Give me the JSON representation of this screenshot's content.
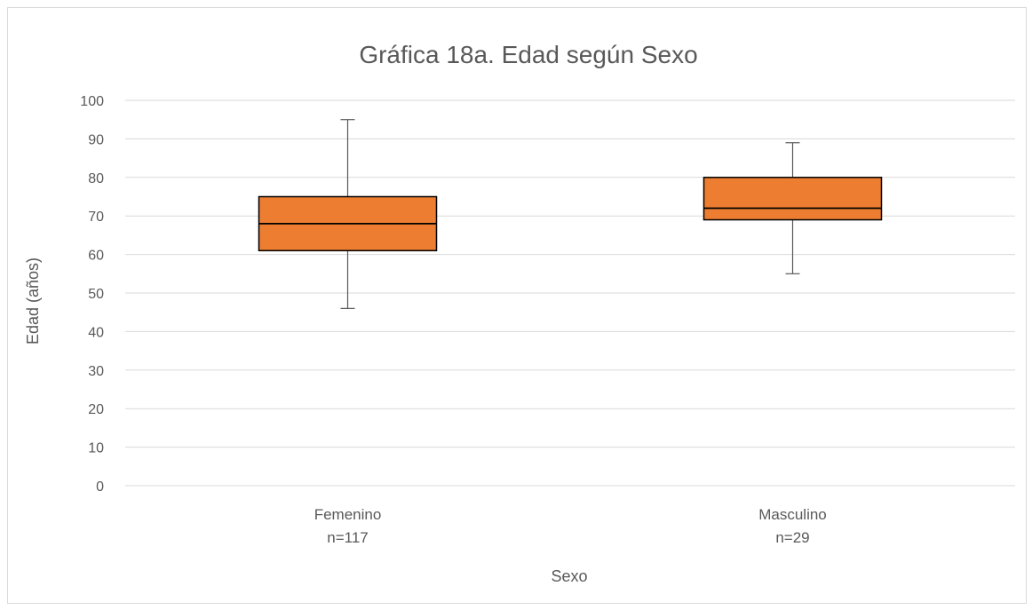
{
  "chart_data": {
    "type": "box",
    "title": "Gráfica 18a. Edad según Sexo",
    "xlabel": "Sexo",
    "ylabel": "Edad (años)",
    "ylim": [
      0,
      100
    ],
    "yticks": [
      0,
      10,
      20,
      30,
      40,
      50,
      60,
      70,
      80,
      90,
      100
    ],
    "grid": true,
    "legend": "none",
    "box_color": "#ED7D31",
    "categories": [
      {
        "label": "Femenino",
        "sublabel": "n=117",
        "min": 46,
        "q1": 61,
        "median": 68,
        "q3": 75,
        "max": 95
      },
      {
        "label": "Masculino",
        "sublabel": "n=29",
        "min": 55,
        "q1": 69,
        "median": 72,
        "q3": 80,
        "max": 89
      }
    ]
  }
}
